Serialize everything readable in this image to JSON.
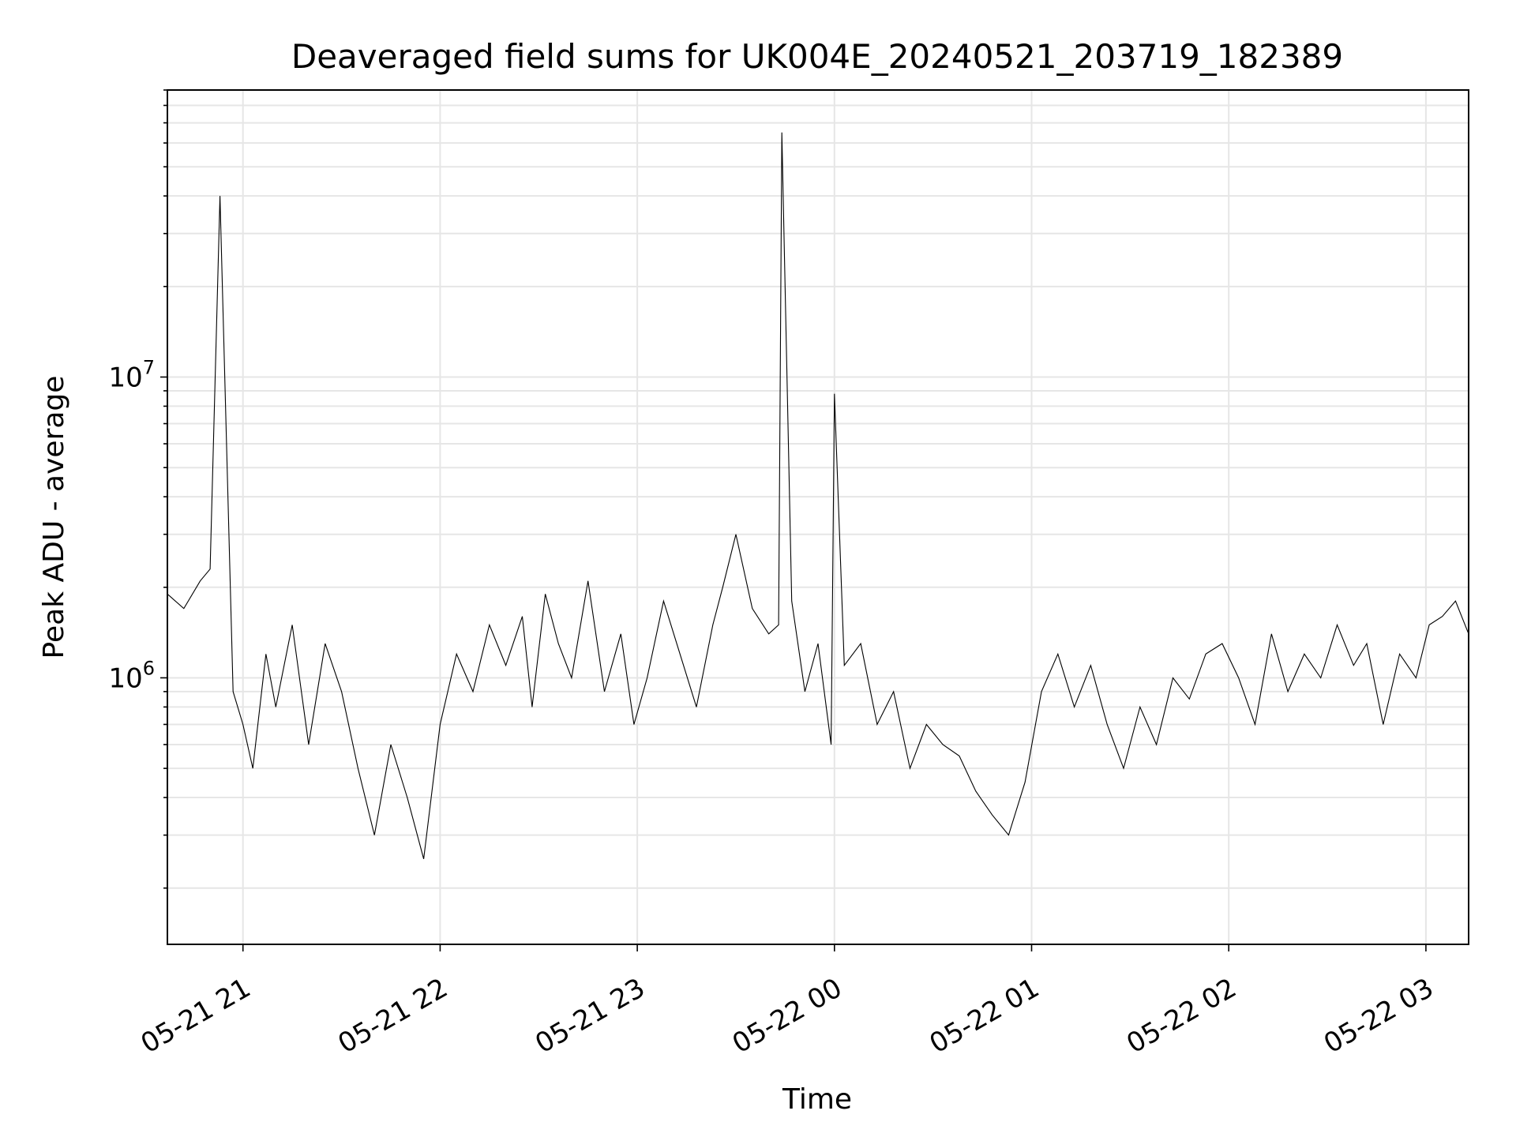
{
  "chart_data": {
    "type": "line",
    "title": "Deaveraged field sums for UK004E_20240521_203719_182389",
    "xlabel": "Time",
    "ylabel": "Peak ADU - average",
    "yscale": "log",
    "ylim": [
      130000,
      90000000
    ],
    "xlim": [
      "2024-05-21 20:37",
      "2024-05-22 03:13"
    ],
    "grid": true,
    "x_ticks": [
      {
        "value": "2024-05-21 21:00",
        "label": "05-21 21"
      },
      {
        "value": "2024-05-21 22:00",
        "label": "05-21 22"
      },
      {
        "value": "2024-05-21 23:00",
        "label": "05-21 23"
      },
      {
        "value": "2024-05-22 00:00",
        "label": "05-22 00"
      },
      {
        "value": "2024-05-22 01:00",
        "label": "05-22 01"
      },
      {
        "value": "2024-05-22 02:00",
        "label": "05-22 02"
      },
      {
        "value": "2024-05-22 03:00",
        "label": "05-22 03"
      }
    ],
    "y_ticks": [
      {
        "value": 1000000,
        "base": "10",
        "exp": "6"
      },
      {
        "value": 10000000,
        "base": "10",
        "exp": "7"
      }
    ],
    "series_color": "#000000",
    "series": [
      {
        "x": [
          "2024-05-21 20:37",
          "2024-05-21 20:42",
          "2024-05-21 20:47",
          "2024-05-21 20:50",
          "2024-05-21 20:53",
          "2024-05-21 20:57",
          "2024-05-21 21:00",
          "2024-05-21 21:03",
          "2024-05-21 21:07",
          "2024-05-21 21:10",
          "2024-05-21 21:15",
          "2024-05-21 21:20",
          "2024-05-21 21:25",
          "2024-05-21 21:30",
          "2024-05-21 21:35",
          "2024-05-21 21:40",
          "2024-05-21 21:45",
          "2024-05-21 21:50",
          "2024-05-21 21:55",
          "2024-05-21 22:00",
          "2024-05-21 22:05",
          "2024-05-21 22:10",
          "2024-05-21 22:15",
          "2024-05-21 22:20",
          "2024-05-21 22:25",
          "2024-05-21 22:28",
          "2024-05-21 22:32",
          "2024-05-21 22:36",
          "2024-05-21 22:40",
          "2024-05-21 22:45",
          "2024-05-21 22:50",
          "2024-05-21 22:55",
          "2024-05-21 22:59",
          "2024-05-21 23:03",
          "2024-05-21 23:08",
          "2024-05-21 23:13",
          "2024-05-21 23:18",
          "2024-05-21 23:23",
          "2024-05-21 23:26",
          "2024-05-21 23:30",
          "2024-05-21 23:35",
          "2024-05-21 23:40",
          "2024-05-21 23:43",
          "2024-05-21 23:44",
          "2024-05-21 23:47",
          "2024-05-21 23:51",
          "2024-05-21 23:55",
          "2024-05-21 23:59",
          "2024-05-22 00:00",
          "2024-05-22 00:03",
          "2024-05-22 00:08",
          "2024-05-22 00:13",
          "2024-05-22 00:18",
          "2024-05-22 00:23",
          "2024-05-22 00:28",
          "2024-05-22 00:33",
          "2024-05-22 00:38",
          "2024-05-22 00:43",
          "2024-05-22 00:48",
          "2024-05-22 00:53",
          "2024-05-22 00:58",
          "2024-05-22 01:03",
          "2024-05-22 01:08",
          "2024-05-22 01:13",
          "2024-05-22 01:18",
          "2024-05-22 01:23",
          "2024-05-22 01:28",
          "2024-05-22 01:33",
          "2024-05-22 01:38",
          "2024-05-22 01:43",
          "2024-05-22 01:48",
          "2024-05-22 01:53",
          "2024-05-22 01:58",
          "2024-05-22 02:03",
          "2024-05-22 02:08",
          "2024-05-22 02:13",
          "2024-05-22 02:18",
          "2024-05-22 02:23",
          "2024-05-22 02:28",
          "2024-05-22 02:33",
          "2024-05-22 02:38",
          "2024-05-22 02:42",
          "2024-05-22 02:47",
          "2024-05-22 02:52",
          "2024-05-22 02:57",
          "2024-05-22 03:01",
          "2024-05-22 03:05",
          "2024-05-22 03:09",
          "2024-05-22 03:13"
        ],
        "y": [
          1900000,
          1700000,
          2100000,
          2300000,
          40000000,
          900000,
          700000,
          500000,
          1200000,
          800000,
          1500000,
          600000,
          1300000,
          900000,
          500000,
          300000,
          600000,
          400000,
          250000,
          700000,
          1200000,
          900000,
          1500000,
          1100000,
          1600000,
          800000,
          1900000,
          1300000,
          1000000,
          2100000,
          900000,
          1400000,
          700000,
          1000000,
          1800000,
          1200000,
          800000,
          1500000,
          2000000,
          3000000,
          1700000,
          1400000,
          1500000,
          65000000,
          1800000,
          900000,
          1300000,
          600000,
          8800000,
          1100000,
          1300000,
          700000,
          900000,
          500000,
          700000,
          600000,
          550000,
          420000,
          350000,
          300000,
          450000,
          900000,
          1200000,
          800000,
          1100000,
          700000,
          500000,
          800000,
          600000,
          1000000,
          850000,
          1200000,
          1300000,
          1000000,
          700000,
          1400000,
          900000,
          1200000,
          1000000,
          1500000,
          1100000,
          1300000,
          700000,
          1200000,
          1000000,
          1500000,
          1600000,
          1800000,
          1400000
        ]
      }
    ]
  }
}
